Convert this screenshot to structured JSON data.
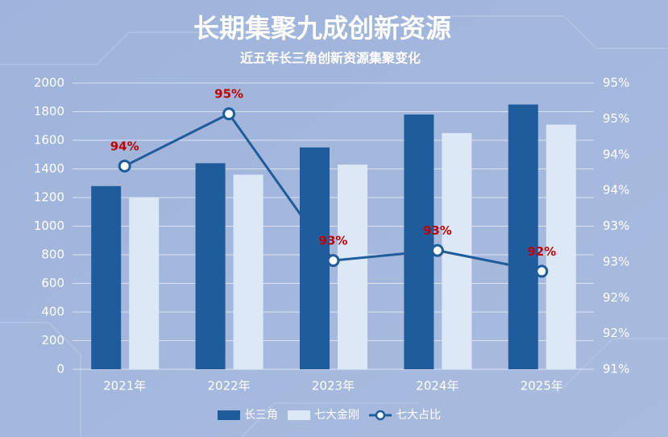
{
  "chart_data": {
    "type": "bar",
    "title": "长期集聚九成创新资源",
    "subtitle": "近五年长三角创新资源集聚变化",
    "categories": [
      "2021年",
      "2022年",
      "2023年",
      "2024年",
      "2025年"
    ],
    "series": [
      {
        "name": "长三角",
        "color": "#1f5c9c",
        "values": [
          1280,
          1440,
          1550,
          1780,
          1850
        ]
      },
      {
        "name": "七大金刚",
        "color": "#dce8f6",
        "values": [
          1200,
          1360,
          1430,
          1650,
          1710
        ]
      },
      {
        "name": "七大占比",
        "type": "line",
        "axis": "y2",
        "color": "#1f5c9c",
        "values": [
          93.84,
          94.57,
          92.52,
          92.66,
          92.37
        ],
        "value_labels": [
          "94%",
          "95%",
          "93%",
          "93%",
          "92%"
        ]
      }
    ],
    "ylim": [
      0,
      2000
    ],
    "yticks": [
      0,
      200,
      400,
      600,
      800,
      1000,
      1200,
      1400,
      1600,
      1800,
      2000
    ],
    "y2lim": [
      91,
      95
    ],
    "y2ticks": [
      {
        "value": 91,
        "label": "91%"
      },
      {
        "value": 91.5,
        "label": "92%"
      },
      {
        "value": 92,
        "label": "92%"
      },
      {
        "value": 92.5,
        "label": "93%"
      },
      {
        "value": 93,
        "label": "93%"
      },
      {
        "value": 93.5,
        "label": "94%"
      },
      {
        "value": 94,
        "label": "94%"
      },
      {
        "value": 94.5,
        "label": "95%"
      },
      {
        "value": 95,
        "label": "95%"
      }
    ],
    "grid": true
  }
}
